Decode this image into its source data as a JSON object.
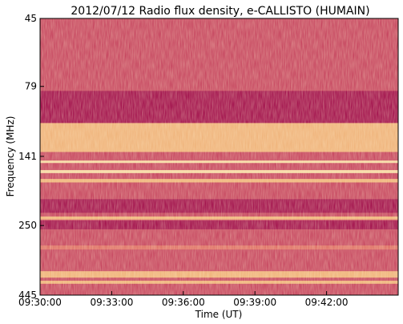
{
  "chart_data": {
    "type": "heatmap",
    "title": "2012/07/12  Radio flux density, e-CALLISTO (HUMAIN)",
    "xlabel": "Time (UT)",
    "ylabel": "Frequency (MHz)",
    "x_ticks": [
      "09:30:00",
      "09:33:00",
      "09:36:00",
      "09:39:00",
      "09:42:00"
    ],
    "x_tick_minutes": [
      0,
      3,
      6,
      9,
      12
    ],
    "x_range_minutes": [
      0,
      15
    ],
    "y_ticks": [
      "45",
      "79",
      "141",
      "250",
      "445"
    ],
    "y_tick_values": [
      45,
      79,
      141,
      250,
      445
    ],
    "y_range": [
      45,
      445
    ],
    "y_scale": "log",
    "y_inverted": true,
    "colormap": [
      "#9b0043",
      "#c23a58",
      "#e07060",
      "#f6c47a",
      "#fff6b0",
      "#74b8a6"
    ],
    "bands_mhz": [
      {
        "from": 82,
        "to": 107,
        "level": "low"
      },
      {
        "from": 107,
        "to": 136,
        "level": "high"
      },
      {
        "from": 146,
        "to": 149,
        "level": "peak"
      },
      {
        "from": 158,
        "to": 162,
        "level": "peak"
      },
      {
        "from": 170,
        "to": 175,
        "level": "high"
      },
      {
        "from": 201,
        "to": 225,
        "level": "low"
      },
      {
        "from": 232,
        "to": 238,
        "level": "high"
      },
      {
        "from": 240,
        "to": 258,
        "level": "low"
      },
      {
        "from": 295,
        "to": 305,
        "level": "medium"
      },
      {
        "from": 365,
        "to": 385,
        "level": "high"
      },
      {
        "from": 395,
        "to": 405,
        "level": "high"
      }
    ],
    "grid": false
  }
}
